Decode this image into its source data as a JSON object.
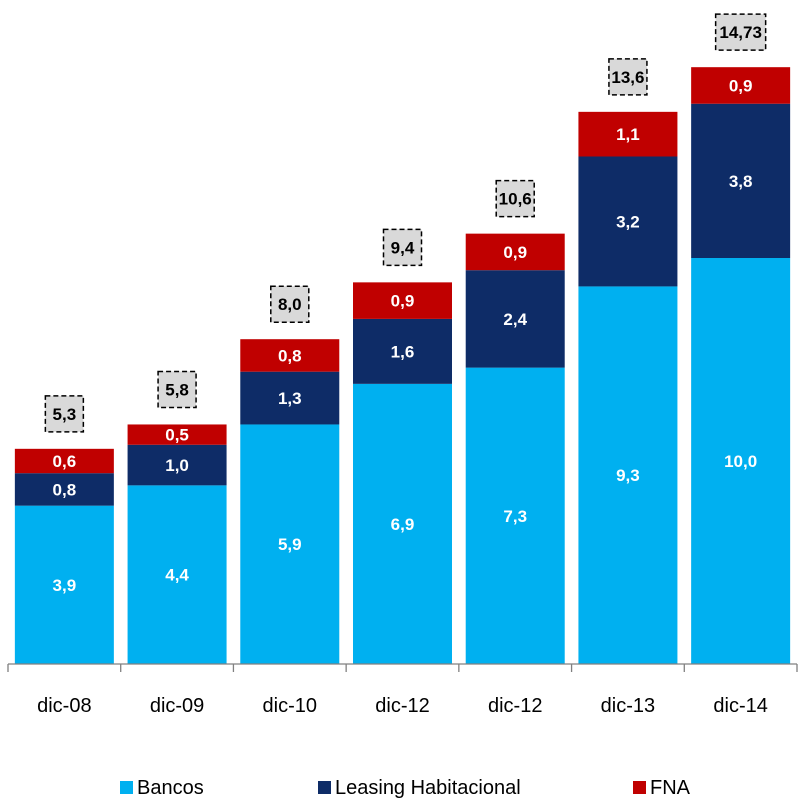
{
  "chart_data": {
    "type": "bar",
    "stacked": true,
    "categories": [
      "dic-08",
      "dic-09",
      "dic-10",
      "dic-12",
      "dic-12",
      "dic-13",
      "dic-14"
    ],
    "series": [
      {
        "name": "Bancos",
        "color": "#00b0f0",
        "values": [
          3.9,
          4.4,
          5.9,
          6.9,
          7.3,
          9.3,
          10.0
        ],
        "labels": [
          "3,9",
          "4,4",
          "5,9",
          "6,9",
          "7,3",
          "9,3",
          "10,0"
        ]
      },
      {
        "name": "Leasing Habitacional",
        "color": "#0e2c67",
        "values": [
          0.8,
          1.0,
          1.3,
          1.6,
          2.4,
          3.2,
          3.8
        ],
        "labels": [
          "0,8",
          "1,0",
          "1,3",
          "1,6",
          "2,4",
          "3,2",
          "3,8"
        ]
      },
      {
        "name": "FNA",
        "color": "#c00000",
        "values": [
          0.6,
          0.5,
          0.8,
          0.9,
          0.9,
          1.1,
          0.9
        ],
        "labels": [
          "0,6",
          "0,5",
          "0,8",
          "0,9",
          "0,9",
          "1,1",
          "0,9"
        ]
      }
    ],
    "totals": [
      5.3,
      5.8,
      8.0,
      9.4,
      10.6,
      13.6,
      14.73
    ],
    "total_labels": [
      "5,3",
      "5,8",
      "8,0",
      "9,4",
      "10,6",
      "13,6",
      "14,73"
    ],
    "ylim": [
      0,
      15
    ],
    "grid": false,
    "legend_position": "bottom"
  }
}
